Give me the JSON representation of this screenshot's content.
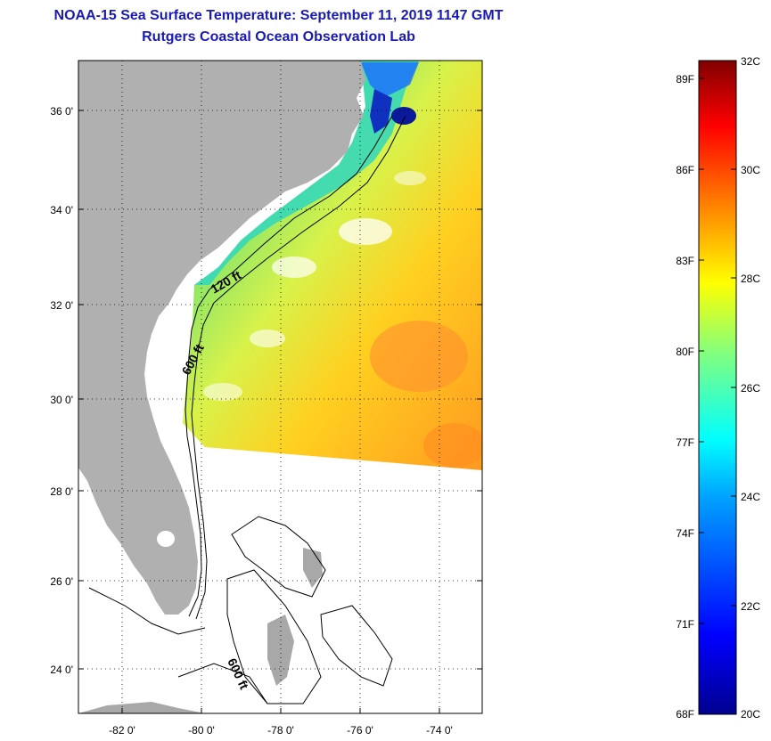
{
  "header": {
    "title": "NOAA-15 Sea Surface Temperature:  September 11, 2019 1147 GMT",
    "subtitle": "Rutgers Coastal Ocean Observation Lab"
  },
  "map": {
    "lat_labels": [
      "36 0'",
      "34 0'",
      "32 0'",
      "30 0'",
      "28 0'",
      "26 0'",
      "24 0'"
    ],
    "lon_labels": [
      "-82 0'",
      "-80 0'",
      "-78 0'",
      "-76 0'",
      "-74 0'"
    ],
    "contour_labels": [
      "120 ft",
      "600 ft",
      "600 ft"
    ]
  },
  "colorbar": {
    "fahrenheit_labels": [
      "89F",
      "86F",
      "83F",
      "80F",
      "77F",
      "74F",
      "71F",
      "68F"
    ],
    "celsius_labels": [
      "32C",
      "30C",
      "28C",
      "26C",
      "24C",
      "22C",
      "20C"
    ],
    "range_c": [
      20,
      32
    ],
    "colors": [
      "#00008f",
      "#0000ff",
      "#00a0ff",
      "#00ffff",
      "#80ff80",
      "#ffff00",
      "#ff8000",
      "#ff0000",
      "#800000"
    ]
  }
}
